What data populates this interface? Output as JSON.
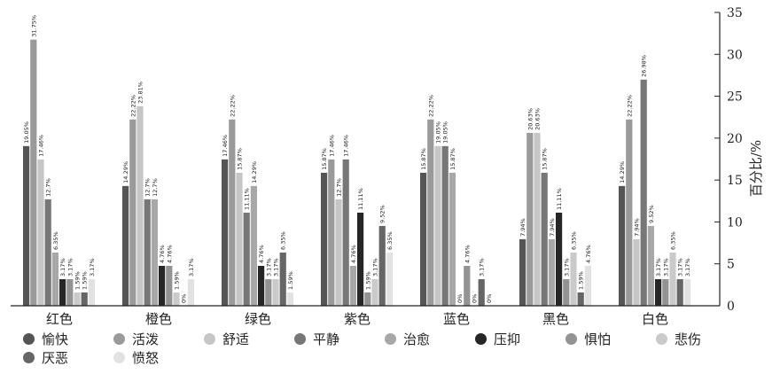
{
  "chart_data": {
    "type": "bar",
    "categories": [
      "红色",
      "橙色",
      "绿色",
      "紫色",
      "蓝色",
      "黑色",
      "白色"
    ],
    "ylabel": "百分比/%",
    "ylim": [
      0,
      35
    ],
    "yticks": [
      "0",
      "5",
      "10",
      "15",
      "20",
      "25",
      "30",
      "35"
    ],
    "y_axis_position": "right",
    "grid": false,
    "legend_position": "bottom-left",
    "series": [
      {
        "name": "愉快",
        "color": "#555555",
        "values": [
          19.05,
          14.29,
          17.46,
          15.87,
          15.87,
          7.94,
          14.29
        ],
        "labels": [
          "19.05%",
          "14.29%",
          "17.46%",
          "15.87%",
          "15.87%",
          "7.94%",
          "14.29%"
        ]
      },
      {
        "name": "活泼",
        "color": "#9a9a9a",
        "values": [
          31.75,
          22.22,
          22.22,
          17.46,
          22.22,
          20.63,
          22.22
        ],
        "labels": [
          "31.75%",
          "22.22%",
          "22.22%",
          "17.46%",
          "22.22%",
          "20.63%",
          "22.22%"
        ]
      },
      {
        "name": "舒适",
        "color": "#c6c6c6",
        "values": [
          17.46,
          23.81,
          15.87,
          12.7,
          19.05,
          20.63,
          7.94
        ],
        "labels": [
          "17.46%",
          "23.81%",
          "15.87%",
          "12.7%",
          "19.05%",
          "20.63%",
          "7.94%"
        ]
      },
      {
        "name": "平静",
        "color": "#777777",
        "values": [
          12.7,
          12.7,
          11.11,
          17.46,
          19.05,
          15.87,
          26.98
        ],
        "labels": [
          "12.7%",
          "12.7%",
          "11.11%",
          "17.46%",
          "19.05%",
          "15.87%",
          "26.98%"
        ]
      },
      {
        "name": "治愈",
        "color": "#a8a8a8",
        "values": [
          6.35,
          12.7,
          14.29,
          4.76,
          15.87,
          7.94,
          9.52
        ],
        "labels": [
          "6.35%",
          "12.7%",
          "14.29%",
          "4.76%",
          "15.87%",
          "7.94%",
          "9.52%"
        ]
      },
      {
        "name": "压抑",
        "color": "#262626",
        "values": [
          3.17,
          4.76,
          4.76,
          11.11,
          0,
          11.11,
          3.17
        ],
        "labels": [
          "3.17%",
          "4.76%",
          "4.76%",
          "11.11%",
          "0%",
          "11.11%",
          "3.17%"
        ]
      },
      {
        "name": "惧怕",
        "color": "#939393",
        "values": [
          3.17,
          4.76,
          3.17,
          1.59,
          4.76,
          3.17,
          3.17
        ],
        "labels": [
          "3.17%",
          "4.76%",
          "3.17%",
          "1.59%",
          "4.76%",
          "3.17%",
          "3.17%"
        ]
      },
      {
        "name": "悲伤",
        "color": "#cacaca",
        "values": [
          1.59,
          1.59,
          3.17,
          3.17,
          0,
          6.35,
          6.35
        ],
        "labels": [
          "1.59%",
          "1.59%",
          "3.17%",
          "3.17%",
          "0%",
          "6.35%",
          "6.35%"
        ]
      },
      {
        "name": "厌恶",
        "color": "#666666",
        "values": [
          1.59,
          0,
          6.35,
          9.52,
          3.17,
          1.59,
          3.17
        ],
        "labels": [
          "1.59%",
          "0%",
          "6.35%",
          "9.52%",
          "3.17%",
          "1.59%",
          "3.17%"
        ]
      },
      {
        "name": "愤怒",
        "color": "#e2e2e2",
        "values": [
          3.17,
          3.17,
          1.59,
          6.35,
          0,
          4.76,
          3.17
        ],
        "labels": [
          "3.17%",
          "3.17%",
          "1.59%",
          "6.35%",
          "0%",
          "4.76%",
          "3.17%"
        ]
      }
    ]
  }
}
